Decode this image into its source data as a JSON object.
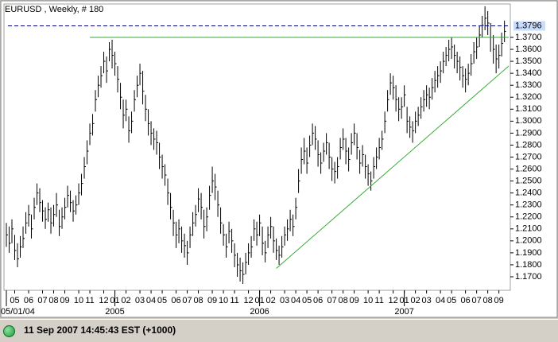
{
  "chart_data": {
    "type": "ohlc",
    "title": "EURUSD , Weekly, # 180",
    "color": "#000000",
    "high": [
      1.215,
      1.212,
      1.218,
      1.205,
      1.198,
      1.204,
      1.212,
      1.224,
      1.23,
      1.222,
      1.236,
      1.248,
      1.244,
      1.234,
      1.228,
      1.232,
      1.228,
      1.23,
      1.24,
      1.226,
      1.228,
      1.236,
      1.246,
      1.242,
      1.234,
      1.238,
      1.248,
      1.256,
      1.27,
      1.284,
      1.298,
      1.306,
      1.326,
      1.338,
      1.346,
      1.358,
      1.354,
      1.366,
      1.368,
      1.358,
      1.346,
      1.332,
      1.318,
      1.318,
      1.304,
      1.308,
      1.326,
      1.338,
      1.348,
      1.342,
      1.322,
      1.31,
      1.3,
      1.294,
      1.292,
      1.282,
      1.272,
      1.264,
      1.252,
      1.24,
      1.226,
      1.216,
      1.218,
      1.212,
      1.206,
      1.2,
      1.212,
      1.224,
      1.23,
      1.244,
      1.24,
      1.226,
      1.228,
      1.246,
      1.262,
      1.256,
      1.242,
      1.228,
      1.214,
      1.206,
      1.216,
      1.21,
      1.198,
      1.19,
      1.186,
      1.182,
      1.19,
      1.198,
      1.204,
      1.218,
      1.216,
      1.222,
      1.212,
      1.2,
      1.212,
      1.22,
      1.212,
      1.202,
      1.196,
      1.204,
      1.212,
      1.218,
      1.226,
      1.222,
      1.236,
      1.26,
      1.278,
      1.286,
      1.278,
      1.288,
      1.298,
      1.296,
      1.284,
      1.274,
      1.282,
      1.29,
      1.282,
      1.27,
      1.266,
      1.27,
      1.286,
      1.294,
      1.286,
      1.278,
      1.29,
      1.298,
      1.29,
      1.276,
      1.28,
      1.272,
      1.264,
      1.258,
      1.27,
      1.278,
      1.286,
      1.292,
      1.308,
      1.326,
      1.34,
      1.338,
      1.33,
      1.32,
      1.32,
      1.33,
      1.312,
      1.304,
      1.3,
      1.308,
      1.312,
      1.32,
      1.326,
      1.33,
      1.328,
      1.336,
      1.342,
      1.346,
      1.35,
      1.358,
      1.362,
      1.368,
      1.37,
      1.364,
      1.358,
      1.354,
      1.346,
      1.344,
      1.348,
      1.356,
      1.366,
      1.37,
      1.38,
      1.388,
      1.396,
      1.392,
      1.382,
      1.372,
      1.364,
      1.364,
      1.374,
      1.384
    ],
    "low": [
      1.195,
      1.19,
      1.198,
      1.184,
      1.178,
      1.186,
      1.194,
      1.206,
      1.212,
      1.202,
      1.218,
      1.23,
      1.224,
      1.216,
      1.21,
      1.216,
      1.206,
      1.212,
      1.22,
      1.204,
      1.21,
      1.218,
      1.228,
      1.224,
      1.216,
      1.222,
      1.23,
      1.238,
      1.252,
      1.264,
      1.28,
      1.288,
      1.308,
      1.32,
      1.328,
      1.34,
      1.332,
      1.35,
      1.344,
      1.338,
      1.324,
      1.31,
      1.294,
      1.3,
      1.282,
      1.29,
      1.308,
      1.32,
      1.33,
      1.314,
      1.3,
      1.288,
      1.28,
      1.276,
      1.272,
      1.26,
      1.252,
      1.246,
      1.23,
      1.218,
      1.204,
      1.194,
      1.198,
      1.19,
      1.186,
      1.18,
      1.194,
      1.204,
      1.212,
      1.224,
      1.218,
      1.202,
      1.208,
      1.226,
      1.24,
      1.234,
      1.22,
      1.206,
      1.196,
      1.186,
      1.198,
      1.19,
      1.178,
      1.17,
      1.166,
      1.164,
      1.172,
      1.18,
      1.186,
      1.2,
      1.196,
      1.204,
      1.188,
      1.182,
      1.194,
      1.202,
      1.19,
      1.184,
      1.18,
      1.186,
      1.196,
      1.2,
      1.208,
      1.204,
      1.218,
      1.24,
      1.256,
      1.264,
      1.256,
      1.27,
      1.28,
      1.276,
      1.262,
      1.256,
      1.266,
      1.272,
      1.26,
      1.25,
      1.248,
      1.252,
      1.268,
      1.276,
      1.264,
      1.258,
      1.272,
      1.28,
      1.268,
      1.256,
      1.262,
      1.252,
      1.246,
      1.242,
      1.252,
      1.26,
      1.268,
      1.276,
      1.29,
      1.308,
      1.322,
      1.318,
      1.308,
      1.3,
      1.302,
      1.312,
      1.29,
      1.286,
      1.282,
      1.29,
      1.296,
      1.302,
      1.308,
      1.312,
      1.31,
      1.318,
      1.324,
      1.328,
      1.332,
      1.34,
      1.346,
      1.35,
      1.352,
      1.344,
      1.34,
      1.334,
      1.328,
      1.324,
      1.33,
      1.338,
      1.348,
      1.352,
      1.362,
      1.37,
      1.376,
      1.372,
      1.358,
      1.348,
      1.34,
      1.344,
      1.354,
      1.366
    ],
    "close": [
      1.205,
      1.198,
      1.21,
      1.192,
      1.185,
      1.195,
      1.202,
      1.215,
      1.222,
      1.21,
      1.228,
      1.24,
      1.232,
      1.225,
      1.218,
      1.226,
      1.215,
      1.222,
      1.23,
      1.212,
      1.22,
      1.228,
      1.238,
      1.232,
      1.225,
      1.23,
      1.24,
      1.248,
      1.262,
      1.275,
      1.29,
      1.298,
      1.318,
      1.33,
      1.338,
      1.35,
      1.342,
      1.36,
      1.355,
      1.348,
      1.335,
      1.32,
      1.305,
      1.31,
      1.292,
      1.3,
      1.318,
      1.33,
      1.34,
      1.325,
      1.31,
      1.298,
      1.29,
      1.285,
      1.282,
      1.27,
      1.262,
      1.255,
      1.24,
      1.228,
      1.215,
      1.205,
      1.21,
      1.2,
      1.196,
      1.19,
      1.205,
      1.215,
      1.222,
      1.235,
      1.228,
      1.212,
      1.22,
      1.238,
      1.25,
      1.245,
      1.23,
      1.215,
      1.205,
      1.195,
      1.208,
      1.2,
      1.188,
      1.18,
      1.175,
      1.172,
      1.182,
      1.19,
      1.195,
      1.21,
      1.205,
      1.215,
      1.198,
      1.19,
      1.205,
      1.212,
      1.2,
      1.192,
      1.188,
      1.195,
      1.205,
      1.21,
      1.218,
      1.212,
      1.228,
      1.25,
      1.268,
      1.275,
      1.265,
      1.28,
      1.29,
      1.285,
      1.272,
      1.265,
      1.275,
      1.282,
      1.27,
      1.26,
      1.258,
      1.262,
      1.278,
      1.285,
      1.275,
      1.268,
      1.282,
      1.29,
      1.278,
      1.265,
      1.272,
      1.262,
      1.256,
      1.25,
      1.262,
      1.27,
      1.278,
      1.285,
      1.3,
      1.318,
      1.332,
      1.328,
      1.318,
      1.31,
      1.312,
      1.322,
      1.3,
      1.295,
      1.292,
      1.3,
      1.305,
      1.312,
      1.318,
      1.322,
      1.32,
      1.328,
      1.334,
      1.338,
      1.342,
      1.35,
      1.355,
      1.36,
      1.362,
      1.355,
      1.35,
      1.345,
      1.338,
      1.335,
      1.34,
      1.348,
      1.358,
      1.362,
      1.372,
      1.38,
      1.386,
      1.382,
      1.37,
      1.36,
      1.352,
      1.355,
      1.365,
      1.375
    ],
    "xlim": [
      -0.86,
      181.1
    ],
    "ylim": [
      1.1587,
      1.3979
    ],
    "xticks": [
      {
        "value": 3,
        "label": "05"
      },
      {
        "value": 8,
        "label": "06"
      },
      {
        "value": 13,
        "label": "07"
      },
      {
        "value": 17,
        "label": "08"
      },
      {
        "value": 21,
        "label": "09"
      },
      {
        "value": 26,
        "label": "10"
      },
      {
        "value": 30,
        "label": "11"
      },
      {
        "value": 35,
        "label": "12"
      },
      {
        "value": 39,
        "label": "01"
      },
      {
        "value": 43,
        "label": "02"
      },
      {
        "value": 48,
        "label": "03"
      },
      {
        "value": 52,
        "label": "04"
      },
      {
        "value": 56,
        "label": "05"
      },
      {
        "value": 61,
        "label": "06"
      },
      {
        "value": 65,
        "label": "07"
      },
      {
        "value": 69,
        "label": "08"
      },
      {
        "value": 74,
        "label": "09"
      },
      {
        "value": 78,
        "label": "10"
      },
      {
        "value": 82,
        "label": "11"
      },
      {
        "value": 87,
        "label": "12"
      },
      {
        "value": 91,
        "label": "01"
      },
      {
        "value": 95,
        "label": "02"
      },
      {
        "value": 100,
        "label": "03"
      },
      {
        "value": 104,
        "label": "04"
      },
      {
        "value": 108,
        "label": "05"
      },
      {
        "value": 112,
        "label": "06"
      },
      {
        "value": 117,
        "label": "07"
      },
      {
        "value": 121,
        "label": "08"
      },
      {
        "value": 125,
        "label": "09"
      },
      {
        "value": 130,
        "label": "10"
      },
      {
        "value": 134,
        "label": "11"
      },
      {
        "value": 139,
        "label": "12"
      },
      {
        "value": 143,
        "label": "01"
      },
      {
        "value": 147,
        "label": "02"
      },
      {
        "value": 151,
        "label": "03"
      },
      {
        "value": 156,
        "label": "04"
      },
      {
        "value": 160,
        "label": "05"
      },
      {
        "value": 165,
        "label": "06"
      },
      {
        "value": 169,
        "label": "07"
      },
      {
        "value": 173,
        "label": "08"
      },
      {
        "value": 177,
        "label": "09"
      }
    ],
    "major_xticks": [
      {
        "value": 0,
        "label": "05/01/04"
      },
      {
        "value": 39,
        "label": "2005"
      },
      {
        "value": 91,
        "label": "2006"
      },
      {
        "value": 143,
        "label": "2007"
      }
    ],
    "yticks": [
      {
        "value": 1.17,
        "label": "1.1700"
      },
      {
        "value": 1.18,
        "label": "1.1800"
      },
      {
        "value": 1.19,
        "label": "1.1900"
      },
      {
        "value": 1.2,
        "label": "1.2000"
      },
      {
        "value": 1.21,
        "label": "1.2100"
      },
      {
        "value": 1.22,
        "label": "1.2200"
      },
      {
        "value": 1.23,
        "label": "1.2300"
      },
      {
        "value": 1.24,
        "label": "1.2400"
      },
      {
        "value": 1.25,
        "label": "1.2500"
      },
      {
        "value": 1.26,
        "label": "1.2600"
      },
      {
        "value": 1.27,
        "label": "1.2700"
      },
      {
        "value": 1.28,
        "label": "1.2800"
      },
      {
        "value": 1.29,
        "label": "1.2900"
      },
      {
        "value": 1.3,
        "label": "1.3000"
      },
      {
        "value": 1.31,
        "label": "1.3100"
      },
      {
        "value": 1.32,
        "label": "1.3200"
      },
      {
        "value": 1.33,
        "label": "1.3300"
      },
      {
        "value": 1.34,
        "label": "1.3400"
      },
      {
        "value": 1.35,
        "label": "1.3500"
      },
      {
        "value": 1.36,
        "label": "1.3600"
      },
      {
        "value": 1.37,
        "label": "1.3700"
      }
    ],
    "last_price": {
      "value": 1.3796,
      "color": "#000080"
    },
    "lines": [
      {
        "x": [
          30,
          181
        ],
        "y": [
          1.37,
          1.37
        ],
        "color": "#33aa33"
      },
      {
        "x": [
          97,
          181
        ],
        "y": [
          1.177,
          1.347
        ],
        "color": "#33aa33"
      }
    ]
  },
  "status_bar": {
    "text": "11 Sep 2007 14:45:43 EST (+1000)"
  }
}
